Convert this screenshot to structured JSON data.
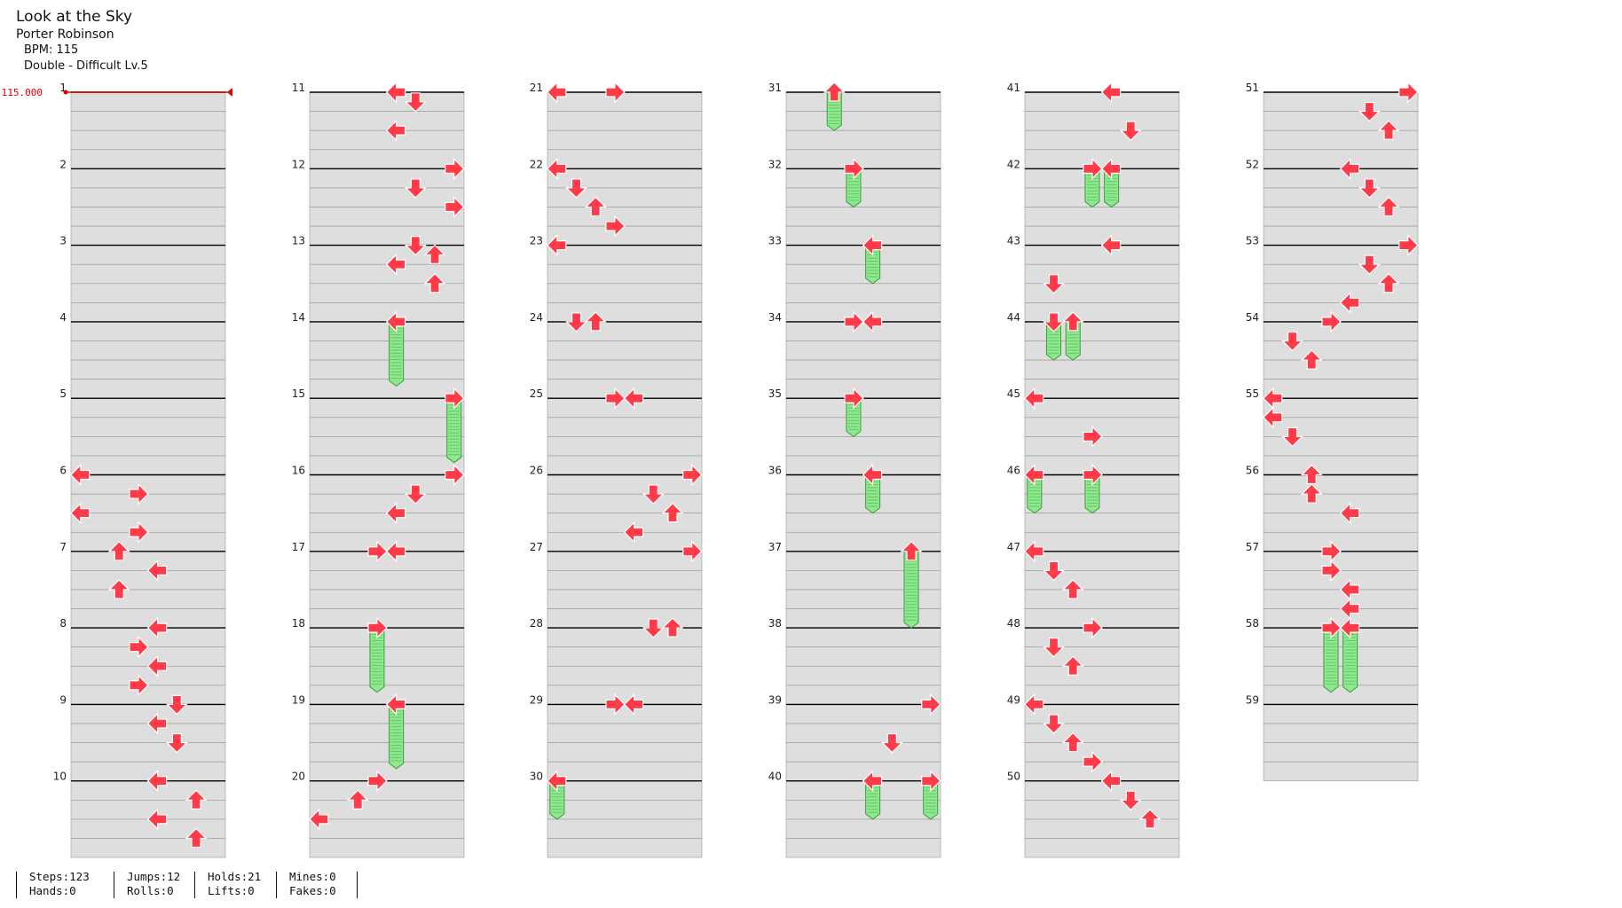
{
  "song": {
    "title": "Look at the Sky",
    "artist": "Porter Robinson",
    "bpm_label": "BPM: 115",
    "difficulty_label": "Double - Difficult Lv.5"
  },
  "bpm_marker": {
    "text": "115.000",
    "start_measure": 1
  },
  "colors": {
    "arrow_fill": "#ff3b4a",
    "arrow_stroke": "#ffffff",
    "hold_fill": "#8ee88e",
    "hold_stroke": "#3a9a3a",
    "lane_band": "#dedede",
    "measure_line": "#000000",
    "bpm_marker": "#e00000"
  },
  "stats": [
    {
      "top": "Steps:123",
      "bottom": "Hands:0"
    },
    {
      "top": "Jumps:12",
      "bottom": "Rolls:0"
    },
    {
      "top": "Holds:21",
      "bottom": "Lifts:0"
    },
    {
      "top": "Mines:0",
      "bottom": "Fakes:0"
    }
  ],
  "lane_icons": [
    "arrow-left",
    "arrow-down",
    "arrow-up",
    "arrow-right",
    "arrow-left",
    "arrow-down",
    "arrow-up",
    "arrow-right"
  ],
  "measures": [
    {
      "n": 1,
      "notes": []
    },
    {
      "n": 2,
      "notes": []
    },
    {
      "n": 3,
      "notes": []
    },
    {
      "n": 4,
      "notes": []
    },
    {
      "n": 5,
      "notes": []
    },
    {
      "n": 6,
      "notes": [
        [
          0,
          0
        ],
        [
          3,
          0.25
        ],
        [
          0,
          0.5
        ],
        [
          3,
          0.75
        ]
      ]
    },
    {
      "n": 7,
      "notes": [
        [
          2,
          0
        ],
        [
          4,
          0.25
        ],
        [
          2,
          0.5
        ]
      ]
    },
    {
      "n": 8,
      "notes": [
        [
          4,
          0
        ],
        [
          3,
          0.25
        ],
        [
          4,
          0.5
        ],
        [
          3,
          0.75
        ]
      ]
    },
    {
      "n": 9,
      "notes": [
        [
          5,
          0
        ],
        [
          4,
          0.25
        ],
        [
          5,
          0.5
        ]
      ]
    },
    {
      "n": 10,
      "notes": [
        [
          4,
          0
        ],
        [
          6,
          0.25
        ],
        [
          4,
          0.5
        ],
        [
          6,
          0.75
        ]
      ]
    },
    {
      "n": 11,
      "notes": [
        [
          4,
          0
        ],
        [
          5,
          0.125
        ],
        [
          4,
          0.5
        ]
      ]
    },
    {
      "n": 12,
      "notes": [
        [
          7,
          0
        ],
        [
          5,
          0.25
        ],
        [
          7,
          0.5
        ]
      ]
    },
    {
      "n": 13,
      "notes": [
        [
          5,
          0
        ],
        [
          6,
          0.125
        ],
        [
          4,
          0.25
        ],
        [
          6,
          0.5
        ]
      ]
    },
    {
      "n": 14,
      "notes": [
        [
          4,
          0,
          0.84
        ]
      ]
    },
    {
      "n": 15,
      "notes": [
        [
          7,
          0,
          0.84
        ]
      ]
    },
    {
      "n": 16,
      "notes": [
        [
          7,
          0
        ],
        [
          5,
          0.25
        ],
        [
          4,
          0.5
        ]
      ]
    },
    {
      "n": 17,
      "notes": [
        [
          3,
          0
        ],
        [
          4,
          0
        ]
      ]
    },
    {
      "n": 18,
      "notes": [
        [
          3,
          0,
          0.84
        ]
      ]
    },
    {
      "n": 19,
      "notes": [
        [
          4,
          0,
          0.84
        ]
      ]
    },
    {
      "n": 20,
      "notes": [
        [
          3,
          0
        ],
        [
          2,
          0.25
        ],
        [
          0,
          0.5
        ]
      ]
    },
    {
      "n": 21,
      "notes": [
        [
          0,
          0
        ],
        [
          3,
          0
        ]
      ]
    },
    {
      "n": 22,
      "notes": [
        [
          0,
          0
        ],
        [
          1,
          0.25
        ],
        [
          2,
          0.5
        ],
        [
          3,
          0.75
        ]
      ]
    },
    {
      "n": 23,
      "notes": [
        [
          0,
          0
        ]
      ]
    },
    {
      "n": 24,
      "notes": [
        [
          1,
          0
        ],
        [
          2,
          0
        ]
      ]
    },
    {
      "n": 25,
      "notes": [
        [
          3,
          0
        ],
        [
          4,
          0
        ]
      ]
    },
    {
      "n": 26,
      "notes": [
        [
          7,
          0
        ],
        [
          5,
          0.25
        ],
        [
          6,
          0.5
        ],
        [
          4,
          0.75
        ]
      ]
    },
    {
      "n": 27,
      "notes": [
        [
          7,
          0
        ]
      ]
    },
    {
      "n": 28,
      "notes": [
        [
          5,
          0
        ],
        [
          6,
          0
        ]
      ]
    },
    {
      "n": 29,
      "notes": [
        [
          3,
          0
        ],
        [
          4,
          0
        ]
      ]
    },
    {
      "n": 30,
      "notes": [
        [
          0,
          0,
          0.5
        ]
      ]
    },
    {
      "n": 31,
      "notes": [
        [
          2,
          0,
          0.5
        ]
      ]
    },
    {
      "n": 32,
      "notes": [
        [
          3,
          0,
          0.5
        ]
      ]
    },
    {
      "n": 33,
      "notes": [
        [
          4,
          0,
          0.5
        ]
      ]
    },
    {
      "n": 34,
      "notes": [
        [
          3,
          0
        ],
        [
          4,
          0
        ]
      ]
    },
    {
      "n": 35,
      "notes": [
        [
          3,
          0,
          0.5
        ]
      ]
    },
    {
      "n": 36,
      "notes": [
        [
          4,
          0,
          0.5
        ]
      ]
    },
    {
      "n": 37,
      "notes": [
        [
          6,
          0,
          1.0
        ]
      ]
    },
    {
      "n": 38,
      "notes": []
    },
    {
      "n": 39,
      "notes": [
        [
          7,
          0
        ],
        [
          5,
          0.5
        ]
      ]
    },
    {
      "n": 40,
      "notes": [
        [
          4,
          0,
          0.5
        ],
        [
          7,
          0,
          0.5
        ]
      ]
    },
    {
      "n": 41,
      "notes": [
        [
          4,
          0
        ],
        [
          5,
          0.5
        ]
      ]
    },
    {
      "n": 42,
      "notes": [
        [
          3,
          0,
          0.5
        ],
        [
          4,
          0,
          0.5
        ]
      ]
    },
    {
      "n": 43,
      "notes": [
        [
          4,
          0
        ],
        [
          1,
          0.5
        ]
      ]
    },
    {
      "n": 44,
      "notes": [
        [
          1,
          0,
          0.5
        ],
        [
          2,
          0,
          0.5
        ]
      ]
    },
    {
      "n": 45,
      "notes": [
        [
          0,
          0
        ],
        [
          3,
          0.5
        ]
      ]
    },
    {
      "n": 46,
      "notes": [
        [
          0,
          0,
          0.5
        ],
        [
          3,
          0,
          0.5
        ]
      ]
    },
    {
      "n": 47,
      "notes": [
        [
          0,
          0
        ],
        [
          1,
          0.25
        ],
        [
          2,
          0.5
        ]
      ]
    },
    {
      "n": 48,
      "notes": [
        [
          3,
          0
        ],
        [
          1,
          0.25
        ],
        [
          2,
          0.5
        ]
      ]
    },
    {
      "n": 49,
      "notes": [
        [
          0,
          0
        ],
        [
          1,
          0.25
        ],
        [
          2,
          0.5
        ],
        [
          3,
          0.75
        ]
      ]
    },
    {
      "n": 50,
      "notes": [
        [
          4,
          0
        ],
        [
          5,
          0.25
        ],
        [
          6,
          0.5
        ]
      ]
    },
    {
      "n": 51,
      "notes": [
        [
          7,
          0
        ],
        [
          5,
          0.25
        ],
        [
          6,
          0.5
        ]
      ]
    },
    {
      "n": 52,
      "notes": [
        [
          4,
          0
        ],
        [
          5,
          0.25
        ],
        [
          6,
          0.5
        ]
      ]
    },
    {
      "n": 53,
      "notes": [
        [
          7,
          0
        ],
        [
          5,
          0.25
        ],
        [
          6,
          0.5
        ],
        [
          4,
          0.75
        ]
      ]
    },
    {
      "n": 54,
      "notes": [
        [
          3,
          0
        ],
        [
          1,
          0.25
        ],
        [
          2,
          0.5
        ]
      ]
    },
    {
      "n": 55,
      "notes": [
        [
          0,
          0
        ],
        [
          0,
          0.25
        ],
        [
          1,
          0.5
        ]
      ]
    },
    {
      "n": 56,
      "notes": [
        [
          2,
          0
        ],
        [
          2,
          0.25
        ],
        [
          4,
          0.5
        ]
      ]
    },
    {
      "n": 57,
      "notes": [
        [
          3,
          0
        ],
        [
          3,
          0.25
        ],
        [
          4,
          0.5
        ],
        [
          4,
          0.75
        ]
      ]
    },
    {
      "n": 58,
      "notes": [
        [
          3,
          0,
          0.84
        ],
        [
          4,
          0,
          0.84
        ]
      ]
    },
    {
      "n": 59,
      "notes": []
    }
  ]
}
